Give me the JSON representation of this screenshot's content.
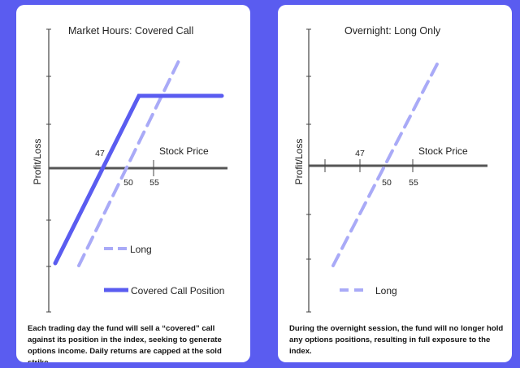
{
  "colors": {
    "background": "#5a5cf0",
    "covered_call": "#5a5cf0",
    "long": "#a9aaf7",
    "axis": "#555555",
    "ticks": "#444444"
  },
  "chart_data": [
    {
      "type": "line",
      "title": "Market Hours: Covered Call",
      "ylabel": "Profit/Loss",
      "xlabel": "Stock Price",
      "x_tick_labels": [
        "47",
        "50",
        "55"
      ],
      "grid": false,
      "legend": "bottom-center",
      "series": [
        {
          "name": "Long",
          "style": "dashed",
          "color": "#a9aaf7",
          "points": [
            [
              25,
              -22
            ],
            [
              80,
              33
            ]
          ]
        },
        {
          "name": "Covered Call Position",
          "style": "solid",
          "color": "#5a5cf0",
          "points": [
            [
              25,
              -22
            ],
            [
              65,
              18
            ],
            [
              80,
              18
            ]
          ]
        }
      ],
      "caption": "Each trading day the fund will sell a “covered” call against its position in the index, seeking to generate options income. Daily returns are capped at the sold strike."
    },
    {
      "type": "line",
      "title": "Overnight: Long Only",
      "ylabel": "Profit/Loss",
      "xlabel": "Stock Price",
      "x_tick_labels": [
        "47",
        "50",
        "55"
      ],
      "grid": false,
      "legend": "bottom-center",
      "series": [
        {
          "name": "Long",
          "style": "dashed",
          "color": "#a9aaf7",
          "points": [
            [
              35,
              -15
            ],
            [
              80,
              30
            ]
          ]
        }
      ],
      "caption": "During the overnight session, the fund will no longer hold any options positions, resulting in full exposure to the index."
    }
  ]
}
